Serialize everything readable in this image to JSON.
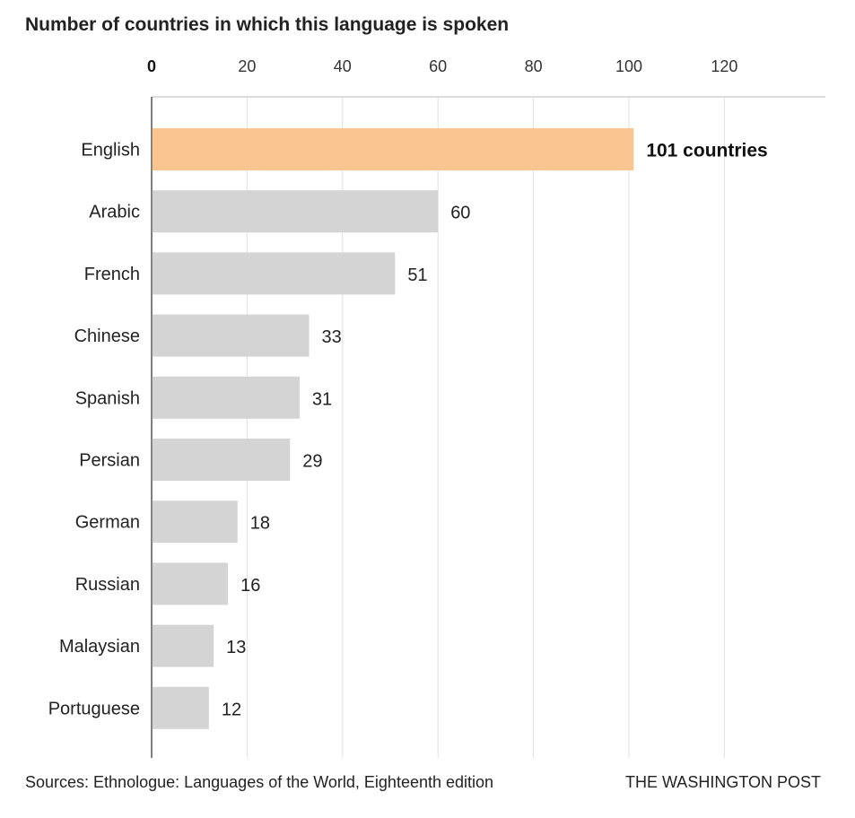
{
  "chart_data": {
    "type": "bar",
    "orientation": "horizontal",
    "title": "Number of countries in which this language is spoken",
    "categories": [
      "English",
      "Arabic",
      "French",
      "Chinese",
      "Spanish",
      "Persian",
      "German",
      "Russian",
      "Malaysian",
      "Portuguese"
    ],
    "values": [
      101,
      60,
      51,
      33,
      31,
      29,
      18,
      16,
      13,
      12
    ],
    "value_labels": [
      "101 countries",
      "60",
      "51",
      "33",
      "31",
      "29",
      "18",
      "16",
      "13",
      "12"
    ],
    "highlight_index": 0,
    "xlim": [
      0,
      120
    ],
    "xticks": [
      0,
      20,
      40,
      60,
      80,
      100,
      120
    ],
    "xaxis_position": "top",
    "grid": true,
    "colors": {
      "highlight": "#fbc592",
      "bar": "#d4d4d4",
      "grid": "#e2e2e2"
    }
  },
  "footer": {
    "source": "Sources: Ethnologue: Languages of the World, Eighteenth edition",
    "credit": "THE WASHINGTON POST"
  }
}
